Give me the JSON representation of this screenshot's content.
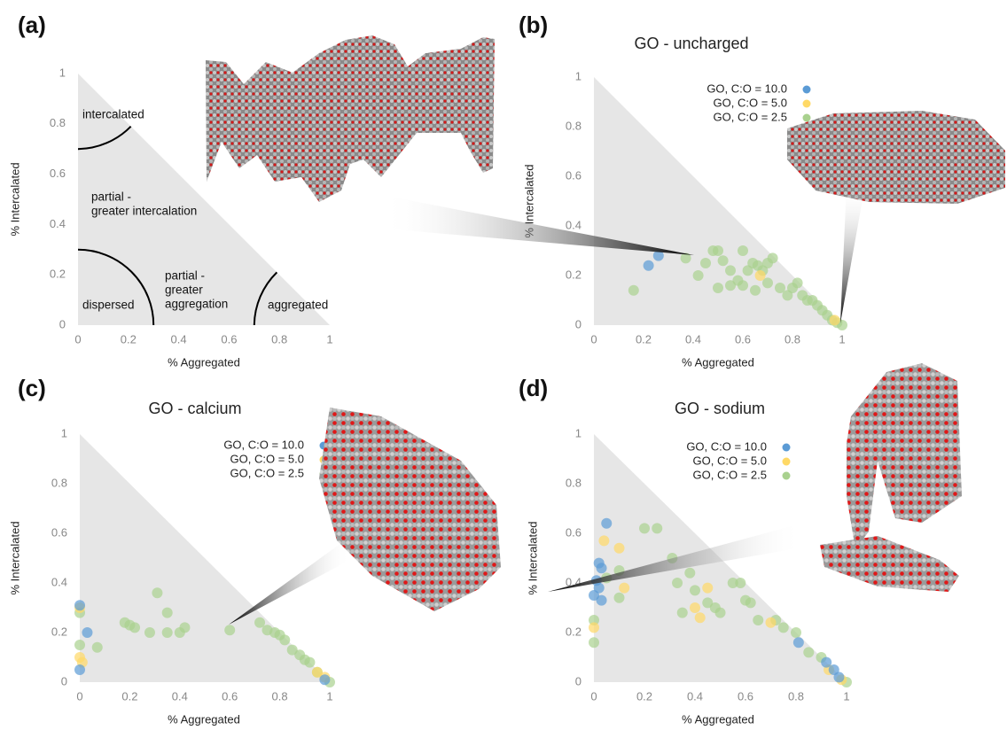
{
  "chart_data": [
    {
      "type": "region",
      "panel_label": "(a)",
      "x_label": "% Aggregated",
      "y_label": "% Intercalated",
      "xlim": [
        0,
        1
      ],
      "ylim": [
        0,
        1
      ],
      "xticks": [
        0,
        0.2,
        0.4,
        0.6,
        0.8,
        1
      ],
      "yticks": [
        0,
        0.2,
        0.4,
        0.6,
        0.8,
        1
      ],
      "annotations": [
        [
          "intercalated"
        ],
        [
          "partial -",
          "greater intercalation"
        ],
        [
          "dispersed"
        ],
        [
          "partial -",
          "greater",
          "aggregation"
        ],
        [
          "aggregated"
        ]
      ]
    },
    {
      "type": "scatter",
      "panel_label": "(b)",
      "title": "GO - uncharged",
      "x_label": "% Aggregated",
      "y_label": "% Intercalated",
      "xlim": [
        0,
        1
      ],
      "ylim": [
        0,
        1
      ],
      "xticks": [
        0,
        0.2,
        0.4,
        0.6,
        0.8,
        1
      ],
      "yticks": [
        0,
        0.2,
        0.4,
        0.6,
        0.8,
        1
      ],
      "series": [
        {
          "name": "GO, C:O = 10.0",
          "color": "#5b9bd5",
          "x": [
            0.26,
            0.22
          ],
          "values": [
            0.28,
            0.24
          ]
        },
        {
          "name": "GO, C:O = 5.0",
          "color": "#ffd966",
          "x": [
            0.67,
            0.97
          ],
          "values": [
            0.2,
            0.02
          ]
        },
        {
          "name": "GO, C:O = 2.5",
          "color": "#a9d18e",
          "x": [
            0.16,
            0.37,
            0.42,
            0.45,
            0.48,
            0.5,
            0.52,
            0.55,
            0.58,
            0.6,
            0.62,
            0.64,
            0.66,
            0.68,
            0.7,
            0.72,
            0.7,
            0.6,
            0.65,
            0.75,
            0.78,
            0.8,
            0.82,
            0.84,
            0.86,
            0.88,
            0.9,
            0.92,
            0.94,
            0.96,
            0.98,
            1,
            0.5,
            0.55
          ],
          "values": [
            0.14,
            0.27,
            0.2,
            0.25,
            0.3,
            0.3,
            0.26,
            0.22,
            0.18,
            0.3,
            0.22,
            0.25,
            0.24,
            0.22,
            0.17,
            0.27,
            0.25,
            0.16,
            0.14,
            0.15,
            0.12,
            0.15,
            0.17,
            0.12,
            0.1,
            0.1,
            0.08,
            0.06,
            0.04,
            0.02,
            0.01,
            0,
            0.15,
            0.16
          ]
        }
      ]
    },
    {
      "type": "scatter",
      "panel_label": "(c)",
      "title": "GO -  calcium",
      "x_label": "% Aggregated",
      "y_label": "% Intercalated",
      "xlim": [
        0,
        1
      ],
      "ylim": [
        0,
        1
      ],
      "xticks": [
        0,
        0.2,
        0.4,
        0.6,
        0.8,
        1
      ],
      "yticks": [
        0,
        0.2,
        0.4,
        0.6,
        0.8,
        1
      ],
      "series": [
        {
          "name": "GO, C:O = 10.0",
          "color": "#5b9bd5",
          "x": [
            0,
            0.03,
            0,
            0.98
          ],
          "values": [
            0.31,
            0.2,
            0.05,
            0.01
          ]
        },
        {
          "name": "GO, C:O = 5.0",
          "color": "#ffd966",
          "x": [
            0,
            0,
            0.01,
            0.95,
            0.98
          ],
          "values": [
            0.3,
            0.1,
            0.08,
            0.04,
            0.02
          ]
        },
        {
          "name": "GO, C:O = 2.5",
          "color": "#a9d18e",
          "x": [
            0,
            0,
            0.07,
            0.18,
            0.2,
            0.22,
            0.28,
            0.31,
            0.35,
            0.35,
            0.4,
            0.42,
            0.6,
            0.72,
            0.75,
            0.78,
            0.8,
            0.82,
            0.85,
            0.88,
            0.9,
            0.92,
            0.95,
            1
          ],
          "values": [
            0.28,
            0.15,
            0.14,
            0.24,
            0.23,
            0.22,
            0.2,
            0.36,
            0.28,
            0.2,
            0.2,
            0.22,
            0.21,
            0.24,
            0.21,
            0.2,
            0.19,
            0.17,
            0.13,
            0.11,
            0.09,
            0.08,
            0.04,
            0
          ]
        }
      ]
    },
    {
      "type": "scatter",
      "panel_label": "(d)",
      "title": "GO - sodium",
      "x_label": "% Aggregated",
      "y_label": "% Intercalated",
      "xlim": [
        0,
        1
      ],
      "ylim": [
        0,
        1
      ],
      "xticks": [
        0,
        0.2,
        0.4,
        0.6,
        0.8,
        1
      ],
      "yticks": [
        0,
        0.2,
        0.4,
        0.6,
        0.8,
        1
      ],
      "series": [
        {
          "name": "GO, C:O = 10.0",
          "color": "#5b9bd5",
          "x": [
            0.05,
            0.02,
            0.03,
            0.01,
            0.02,
            0,
            0.03,
            0.81,
            0.92,
            0.95,
            0.97
          ],
          "values": [
            0.64,
            0.48,
            0.46,
            0.41,
            0.38,
            0.35,
            0.33,
            0.16,
            0.08,
            0.05,
            0.02
          ]
        },
        {
          "name": "GO, C:O = 5.0",
          "color": "#ffd966",
          "x": [
            0.04,
            0.1,
            0,
            0.12,
            0.4,
            0.45,
            0.42,
            0.7,
            0.93,
            0.98
          ],
          "values": [
            0.57,
            0.54,
            0.22,
            0.38,
            0.3,
            0.38,
            0.26,
            0.24,
            0.05,
            0.01
          ]
        },
        {
          "name": "GO, C:O = 2.5",
          "color": "#a9d18e",
          "x": [
            0,
            0,
            0.05,
            0.1,
            0.1,
            0.2,
            0.25,
            0.31,
            0.33,
            0.35,
            0.38,
            0.4,
            0.45,
            0.48,
            0.5,
            0.55,
            0.58,
            0.6,
            0.62,
            0.65,
            0.72,
            0.75,
            0.8,
            0.85,
            0.9,
            1
          ],
          "values": [
            0.16,
            0.25,
            0.42,
            0.45,
            0.34,
            0.62,
            0.62,
            0.5,
            0.4,
            0.28,
            0.44,
            0.37,
            0.32,
            0.3,
            0.28,
            0.4,
            0.4,
            0.33,
            0.32,
            0.25,
            0.25,
            0.22,
            0.2,
            0.12,
            0.1,
            0
          ]
        }
      ]
    }
  ]
}
